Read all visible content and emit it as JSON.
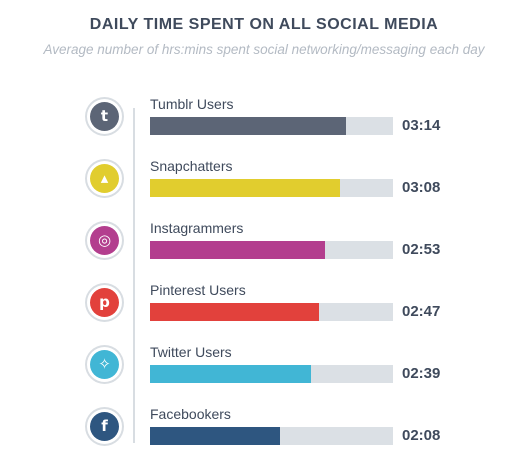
{
  "chart_data": {
    "type": "bar",
    "orientation": "horizontal",
    "title": "DAILY TIME SPENT ON ALL SOCIAL MEDIA",
    "subtitle": "Average number of hrs:mins spent social networking/messaging each day",
    "max_minutes": 240,
    "bars": [
      {
        "label": "Tumblr Users",
        "value_text": "03:14",
        "minutes": 194,
        "color": "#5c6576",
        "icon": "tumblr-icon",
        "icon_glyph": "t"
      },
      {
        "label": "Snapchatters",
        "value_text": "03:08",
        "minutes": 188,
        "color": "#e1cd2e",
        "icon": "snapchat-icon",
        "icon_glyph": "▴"
      },
      {
        "label": "Instagrammers",
        "value_text": "02:53",
        "minutes": 173,
        "color": "#b33e8e",
        "icon": "instagram-icon",
        "icon_glyph": "◎"
      },
      {
        "label": "Pinterest Users",
        "value_text": "02:47",
        "minutes": 167,
        "color": "#e2413c",
        "icon": "pinterest-icon",
        "icon_glyph": "p"
      },
      {
        "label": "Twitter Users",
        "value_text": "02:39",
        "minutes": 159,
        "color": "#41b6d5",
        "icon": "twitter-icon",
        "icon_glyph": "✧"
      },
      {
        "label": "Facebookers",
        "value_text": "02:08",
        "minutes": 128,
        "color": "#2e5680",
        "icon": "facebook-icon",
        "icon_glyph": "f"
      }
    ],
    "track_color": "#dbe0e5",
    "grid": false
  }
}
